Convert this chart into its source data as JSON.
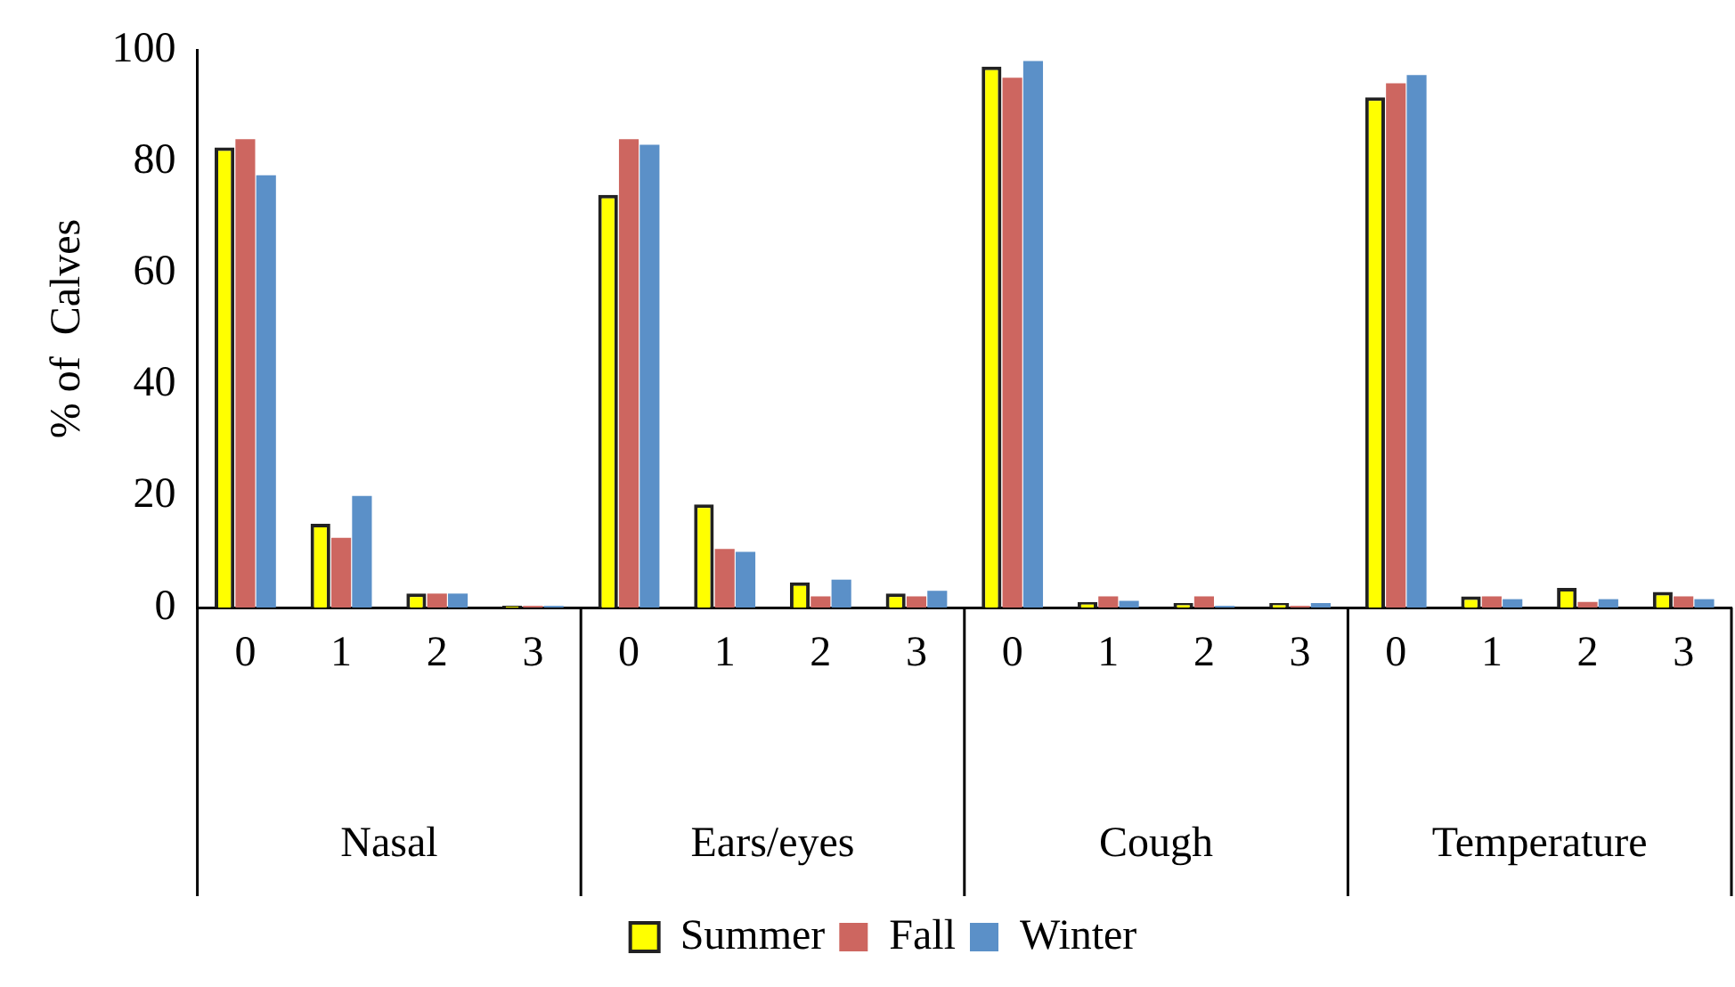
{
  "chart_data": {
    "type": "bar",
    "ylabel": "% of  Calves",
    "categories": [
      "0",
      "1",
      "2",
      "3",
      "0",
      "1",
      "2",
      "3",
      "0",
      "1",
      "2",
      "3",
      "0",
      "1",
      "2",
      "3"
    ],
    "annotations": [
      "Nasal",
      "Ears/eyes",
      "Cough",
      "Temperature"
    ],
    "series": [
      {
        "name": "Summer",
        "color": "#ffff00",
        "values": [
          82.5,
          15,
          2.5,
          0.3,
          74,
          18.5,
          4.5,
          2.5,
          97,
          1,
          0.8,
          0.8,
          91.5,
          2,
          3.5,
          2.8
        ]
      },
      {
        "name": "Fall",
        "color": "#cd6660",
        "values": [
          84,
          12.5,
          2.5,
          0.3,
          84,
          10.5,
          2,
          2,
          95,
          2,
          2,
          0.3,
          94,
          2,
          1,
          2
        ]
      },
      {
        "name": "Winter",
        "color": "#5b90c8",
        "values": [
          77.5,
          20,
          2.5,
          0.3,
          83,
          10,
          5,
          3,
          98,
          1.2,
          0.3,
          0.8,
          95.5,
          1.5,
          1.5,
          1.5
        ]
      }
    ],
    "ylim": [
      0,
      100
    ],
    "yticks": [
      0,
      20,
      40,
      60,
      80,
      100
    ],
    "grid": false,
    "legend": "bottom"
  }
}
